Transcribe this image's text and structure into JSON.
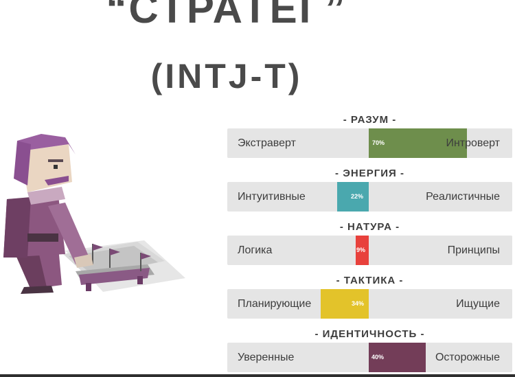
{
  "title": {
    "main": "“СТРАТЕГ”",
    "sub": "(INTJ-T)"
  },
  "traits": [
    {
      "heading": "- РАЗУМ -",
      "left": "Экстраверт",
      "right": "Интроверт",
      "percent": "70%",
      "value": 70,
      "side": "right",
      "color": "#6e8e4c"
    },
    {
      "heading": "- ЭНЕРГИЯ -",
      "left": "Интуитивные",
      "right": "Реалистичные",
      "percent": "22%",
      "value": 22,
      "side": "left",
      "color": "#4aa8ae"
    },
    {
      "heading": "- НАТУРА -",
      "left": "Логика",
      "right": "Принципы",
      "percent": "9%",
      "value": 9,
      "side": "left",
      "color": "#e8413c"
    },
    {
      "heading": "- ТАКТИКА -",
      "left": "Планирующие",
      "right": "Ищущие",
      "percent": "34%",
      "value": 34,
      "side": "left",
      "color": "#e3c32a"
    },
    {
      "heading": "- ИДЕНТИЧНОСТЬ -",
      "left": "Уверенные",
      "right": "Осторожные",
      "percent": "40%",
      "value": 40,
      "side": "right",
      "color": "#733d58"
    }
  ]
}
